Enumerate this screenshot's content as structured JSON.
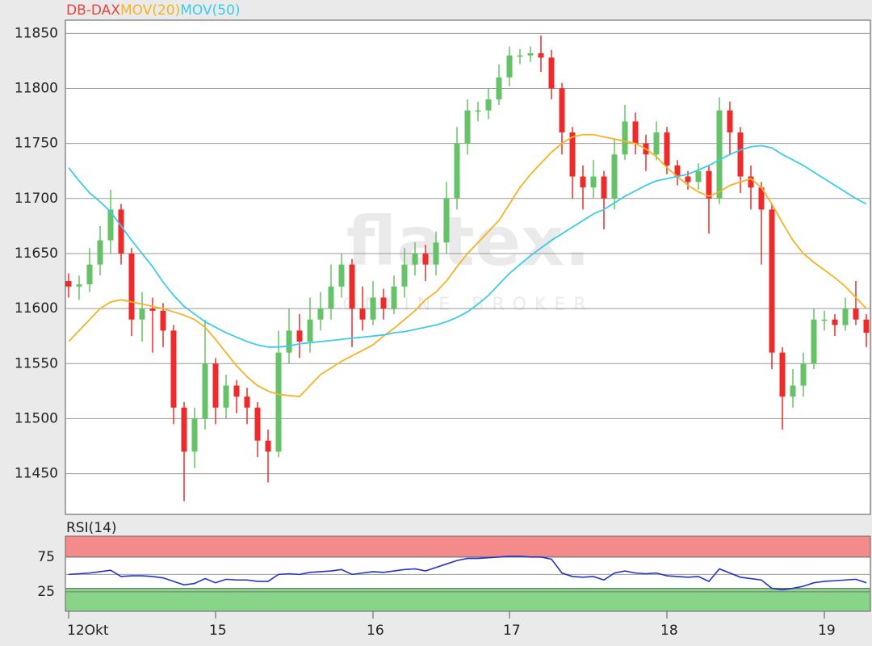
{
  "chart_data": [
    {
      "type": "candlestick",
      "name": "DB-DAX",
      "name_color": "#e8453c",
      "up_color": "#66c266",
      "down_color": "#ee2a2a",
      "categories": [
        "12Okt",
        null,
        null,
        null,
        null,
        null,
        null,
        null,
        null,
        null,
        null,
        null,
        null,
        null,
        "15",
        null,
        null,
        null,
        null,
        null,
        null,
        null,
        null,
        null,
        null,
        null,
        null,
        null,
        null,
        "16",
        null,
        null,
        null,
        null,
        null,
        null,
        null,
        null,
        null,
        null,
        null,
        null,
        "17",
        null,
        null,
        null,
        null,
        null,
        null,
        null,
        null,
        null,
        null,
        null,
        null,
        null,
        null,
        "18",
        null,
        null,
        null,
        null,
        null,
        null,
        null,
        null,
        null,
        null,
        null,
        null,
        null,
        null,
        "19",
        null,
        null,
        null,
        null
      ],
      "open": [
        11625,
        11620,
        11622,
        11640,
        11662,
        11690,
        11650,
        11590,
        11600,
        11598,
        11580,
        11510,
        11470,
        11500,
        11550,
        11510,
        11530,
        11520,
        11510,
        11480,
        11470,
        11560,
        11580,
        11570,
        11590,
        11600,
        11620,
        11640,
        11600,
        11590,
        11610,
        11600,
        11620,
        11640,
        11650,
        11640,
        11660,
        11700,
        11750,
        11780,
        11780,
        11790,
        11810,
        11830,
        11830,
        11832,
        11828,
        11800,
        11760,
        11720,
        11710,
        11720,
        11700,
        11740,
        11770,
        11750,
        11740,
        11760,
        11730,
        11720,
        11715,
        11725,
        11700,
        11780,
        11760,
        11720,
        11710,
        11690,
        11560,
        11520,
        11530,
        11550,
        11590,
        11590,
        11585,
        11600,
        11590
      ],
      "high": [
        11632,
        11630,
        11655,
        11675,
        11708,
        11695,
        11655,
        11615,
        11610,
        11605,
        11585,
        11515,
        11510,
        11590,
        11555,
        11540,
        11535,
        11528,
        11515,
        11490,
        11580,
        11600,
        11595,
        11610,
        11615,
        11640,
        11650,
        11645,
        11620,
        11625,
        11618,
        11630,
        11655,
        11660,
        11658,
        11670,
        11715,
        11765,
        11790,
        11788,
        11800,
        11822,
        11838,
        11836,
        11838,
        11848,
        11835,
        11805,
        11765,
        11730,
        11735,
        11725,
        11755,
        11785,
        11778,
        11758,
        11770,
        11765,
        11735,
        11725,
        11732,
        11730,
        11792,
        11788,
        11765,
        11730,
        11715,
        11695,
        11565,
        11545,
        11560,
        11600,
        11598,
        11595,
        11610,
        11625,
        11595
      ],
      "low": [
        11610,
        11608,
        11615,
        11630,
        11650,
        11640,
        11575,
        11570,
        11560,
        11565,
        11495,
        11425,
        11455,
        11490,
        11495,
        11500,
        11505,
        11495,
        11465,
        11442,
        11465,
        11550,
        11555,
        11560,
        11580,
        11590,
        11610,
        11565,
        11580,
        11585,
        11590,
        11595,
        11610,
        11630,
        11625,
        11630,
        11650,
        11690,
        11740,
        11770,
        11772,
        11785,
        11802,
        11822,
        11824,
        11815,
        11790,
        11740,
        11700,
        11690,
        11700,
        11672,
        11690,
        11735,
        11740,
        11725,
        11735,
        11722,
        11712,
        11708,
        11708,
        11668,
        11695,
        11740,
        11705,
        11690,
        11640,
        11545,
        11490,
        11510,
        11520,
        11545,
        11580,
        11575,
        11580,
        11585,
        11565
      ],
      "close": [
        11620,
        11622,
        11640,
        11662,
        11690,
        11650,
        11590,
        11600,
        11598,
        11580,
        11510,
        11470,
        11500,
        11550,
        11510,
        11530,
        11520,
        11510,
        11480,
        11470,
        11560,
        11580,
        11570,
        11590,
        11600,
        11620,
        11640,
        11600,
        11590,
        11610,
        11600,
        11620,
        11640,
        11650,
        11640,
        11660,
        11700,
        11750,
        11780,
        11780,
        11790,
        11810,
        11830,
        11830,
        11832,
        11828,
        11800,
        11760,
        11720,
        11710,
        11720,
        11700,
        11740,
        11770,
        11750,
        11740,
        11760,
        11730,
        11720,
        11715,
        11725,
        11700,
        11780,
        11760,
        11720,
        11710,
        11690,
        11560,
        11520,
        11530,
        11550,
        11590,
        11590,
        11585,
        11600,
        11590,
        11578
      ],
      "series": [
        {
          "name": "MOV(20)",
          "color": "#f5b324",
          "values": [
            11570,
            11580,
            11590,
            11600,
            11606,
            11608,
            11606,
            11604,
            11602,
            11600,
            11597,
            11594,
            11590,
            11583,
            11572,
            11560,
            11548,
            11538,
            11530,
            11525,
            11522,
            11521,
            11520,
            11530,
            11540,
            11546,
            11552,
            11557,
            11562,
            11567,
            11575,
            11582,
            11590,
            11598,
            11608,
            11615,
            11625,
            11638,
            11650,
            11660,
            11670,
            11680,
            11695,
            11710,
            11722,
            11732,
            11742,
            11750,
            11756,
            11758,
            11758,
            11756,
            11754,
            11752,
            11750,
            11745,
            11738,
            11728,
            11720,
            11712,
            11706,
            11702,
            11706,
            11712,
            11715,
            11718,
            11710,
            11695,
            11678,
            11662,
            11650,
            11642,
            11635,
            11628,
            11620,
            11610,
            11600
          ]
        },
        {
          "name": "MOV(50)",
          "color": "#3ccbea",
          "values": [
            11728,
            11716,
            11705,
            11697,
            11688,
            11675,
            11662,
            11650,
            11638,
            11624,
            11612,
            11602,
            11595,
            11588,
            11583,
            11578,
            11574,
            11570,
            11567,
            11565,
            11565,
            11566,
            11568,
            11569,
            11570,
            11571,
            11572,
            11573,
            11574,
            11575,
            11576,
            11578,
            11579,
            11581,
            11583,
            11585,
            11588,
            11592,
            11597,
            11604,
            11612,
            11622,
            11632,
            11640,
            11648,
            11655,
            11662,
            11668,
            11674,
            11680,
            11686,
            11690,
            11696,
            11702,
            11707,
            11712,
            11716,
            11718,
            11720,
            11722,
            11726,
            11730,
            11735,
            11740,
            11744,
            11747,
            11748,
            11746,
            11740,
            11735,
            11730,
            11724,
            11718,
            11712,
            11706,
            11700,
            11695
          ]
        }
      ],
      "ylim": [
        11413,
        11862
      ],
      "yticks": [
        11450,
        11500,
        11550,
        11600,
        11650,
        11700,
        11750,
        11800,
        11850
      ],
      "grid": true,
      "watermark": {
        "title": "flatex.",
        "subtitle": "ONLINE BROKER"
      }
    },
    {
      "type": "line",
      "series": [
        {
          "name": "RSI(14)",
          "color": "#2233cc",
          "values": [
            50,
            51,
            52,
            54,
            56,
            47,
            48,
            48,
            47,
            45,
            40,
            35,
            37,
            44,
            38,
            43,
            42,
            42,
            40,
            40,
            50,
            51,
            50,
            53,
            54,
            55,
            57,
            50,
            52,
            54,
            53,
            55,
            57,
            58,
            55,
            60,
            65,
            70,
            73,
            73,
            74,
            75,
            76,
            76,
            75,
            75,
            72,
            52,
            47,
            46,
            47,
            42,
            52,
            55,
            52,
            51,
            52,
            48,
            47,
            46,
            47,
            40,
            58,
            52,
            46,
            44,
            42,
            30,
            28,
            30,
            33,
            38,
            40,
            41,
            42,
            43,
            38
          ]
        }
      ],
      "ylim": [
        -3,
        105
      ],
      "yticks": [
        25,
        75
      ],
      "grid_lines": [
        50
      ],
      "zones": [
        {
          "from": 75,
          "to": 105,
          "color": "#f58a8a"
        },
        {
          "from": -3,
          "to": 30,
          "color": "#88d488"
        }
      ]
    }
  ]
}
